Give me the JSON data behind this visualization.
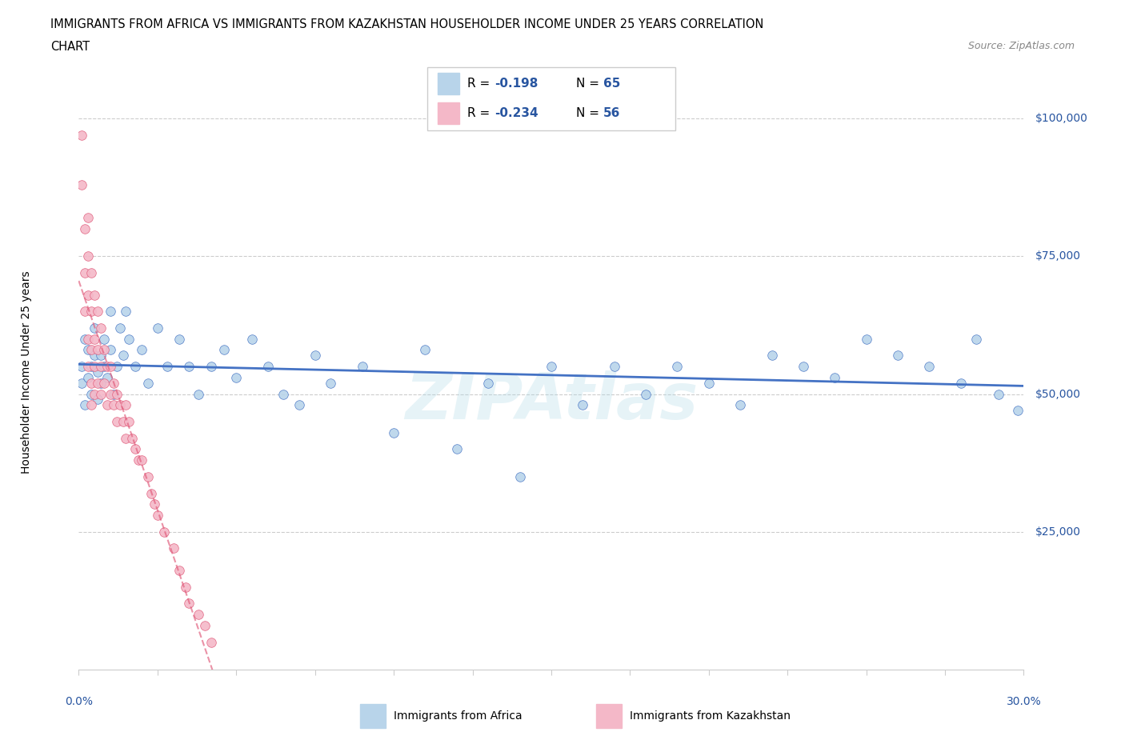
{
  "title_line1": "IMMIGRANTS FROM AFRICA VS IMMIGRANTS FROM KAZAKHSTAN HOUSEHOLDER INCOME UNDER 25 YEARS CORRELATION",
  "title_line2": "CHART",
  "source": "Source: ZipAtlas.com",
  "ylabel": "Householder Income Under 25 years",
  "ytick_labels": [
    "$25,000",
    "$50,000",
    "$75,000",
    "$100,000"
  ],
  "ytick_values": [
    25000,
    50000,
    75000,
    100000
  ],
  "xlim": [
    0.0,
    0.3
  ],
  "ylim": [
    0,
    108000
  ],
  "color_africa": "#b8d4ea",
  "color_africa_line": "#4472c4",
  "color_kazakhstan": "#f4b8c8",
  "color_kazakhstan_line": "#e05878",
  "color_r_text": "#2855a0",
  "watermark": "ZIPAtlas",
  "africa_x": [
    0.001,
    0.001,
    0.002,
    0.002,
    0.003,
    0.003,
    0.004,
    0.004,
    0.005,
    0.005,
    0.006,
    0.006,
    0.007,
    0.007,
    0.008,
    0.008,
    0.009,
    0.01,
    0.01,
    0.011,
    0.012,
    0.013,
    0.014,
    0.015,
    0.016,
    0.018,
    0.02,
    0.022,
    0.025,
    0.028,
    0.032,
    0.035,
    0.038,
    0.042,
    0.046,
    0.05,
    0.055,
    0.06,
    0.065,
    0.07,
    0.075,
    0.08,
    0.09,
    0.1,
    0.11,
    0.12,
    0.13,
    0.14,
    0.15,
    0.16,
    0.17,
    0.18,
    0.19,
    0.2,
    0.21,
    0.22,
    0.23,
    0.24,
    0.25,
    0.26,
    0.27,
    0.28,
    0.285,
    0.292,
    0.298
  ],
  "africa_y": [
    55000,
    52000,
    60000,
    48000,
    58000,
    53000,
    55000,
    50000,
    62000,
    57000,
    54000,
    49000,
    57000,
    52000,
    60000,
    55000,
    53000,
    65000,
    58000,
    50000,
    55000,
    62000,
    57000,
    65000,
    60000,
    55000,
    58000,
    52000,
    62000,
    55000,
    60000,
    55000,
    50000,
    55000,
    58000,
    53000,
    60000,
    55000,
    50000,
    48000,
    57000,
    52000,
    55000,
    43000,
    58000,
    40000,
    52000,
    35000,
    55000,
    48000,
    55000,
    50000,
    55000,
    52000,
    48000,
    57000,
    55000,
    53000,
    60000,
    57000,
    55000,
    52000,
    60000,
    50000,
    47000
  ],
  "kazakhstan_x": [
    0.001,
    0.001,
    0.002,
    0.002,
    0.002,
    0.003,
    0.003,
    0.003,
    0.003,
    0.003,
    0.004,
    0.004,
    0.004,
    0.004,
    0.004,
    0.005,
    0.005,
    0.005,
    0.005,
    0.006,
    0.006,
    0.006,
    0.007,
    0.007,
    0.007,
    0.008,
    0.008,
    0.009,
    0.009,
    0.01,
    0.01,
    0.011,
    0.011,
    0.012,
    0.012,
    0.013,
    0.014,
    0.015,
    0.015,
    0.016,
    0.017,
    0.018,
    0.019,
    0.02,
    0.022,
    0.023,
    0.024,
    0.025,
    0.027,
    0.03,
    0.032,
    0.034,
    0.035,
    0.038,
    0.04,
    0.042
  ],
  "kazakhstan_y": [
    97000,
    88000,
    80000,
    72000,
    65000,
    82000,
    75000,
    68000,
    60000,
    55000,
    72000,
    65000,
    58000,
    52000,
    48000,
    68000,
    60000,
    55000,
    50000,
    65000,
    58000,
    52000,
    62000,
    55000,
    50000,
    58000,
    52000,
    55000,
    48000,
    55000,
    50000,
    52000,
    48000,
    50000,
    45000,
    48000,
    45000,
    48000,
    42000,
    45000,
    42000,
    40000,
    38000,
    38000,
    35000,
    32000,
    30000,
    28000,
    25000,
    22000,
    18000,
    15000,
    12000,
    10000,
    8000,
    5000
  ]
}
